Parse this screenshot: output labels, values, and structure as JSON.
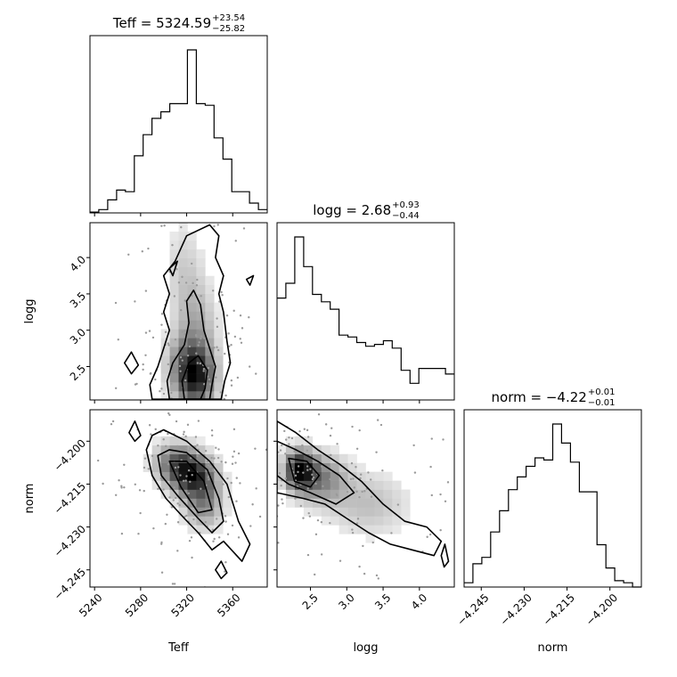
{
  "chart_data": {
    "type": "corner",
    "parameters": [
      "Teff",
      "logg",
      "norm"
    ],
    "titles": [
      {
        "param": "Teff",
        "label": "Teff",
        "median": "5324.59",
        "plus": "+23.54",
        "minus": "−25.82"
      },
      {
        "param": "logg",
        "label": "logg",
        "median": "2.68",
        "plus": "+0.93",
        "minus": "−0.44"
      },
      {
        "param": "norm",
        "label": "norm",
        "median": "−4.22",
        "plus": "+0.01",
        "minus": "−0.01"
      }
    ],
    "axis_labels": {
      "Teff": "Teff",
      "logg": "logg",
      "norm": "norm"
    },
    "ranges": {
      "Teff": [
        5236,
        5390
      ],
      "logg": [
        2.04,
        4.48
      ],
      "norm": [
        -4.251,
        -4.189
      ]
    },
    "ticks": {
      "Teff": {
        "values": [
          5240,
          5280,
          5320,
          5360
        ],
        "labels": [
          "5240",
          "5280",
          "5320",
          "5360"
        ]
      },
      "logg": {
        "values": [
          2.5,
          3.0,
          3.5,
          4.0
        ],
        "labels": [
          "2.5",
          "3.0",
          "3.5",
          "4.0"
        ]
      },
      "norm": {
        "values": [
          -4.245,
          -4.23,
          -4.215,
          -4.2
        ],
        "labels": [
          "−4.245",
          "−4.230",
          "−4.215",
          "−4.200"
        ]
      }
    },
    "histograms": {
      "Teff": {
        "edges_start": 5236,
        "bin_width": 7.7,
        "counts": [
          0.5,
          2,
          8,
          14,
          13,
          35,
          48,
          58,
          62,
          67,
          67,
          100,
          67,
          66,
          46,
          33,
          13,
          13,
          6,
          2
        ]
      },
      "logg": {
        "edges_start": 2.04,
        "bin_width": 0.122,
        "counts": [
          55,
          63,
          88,
          72,
          57,
          53,
          49,
          35,
          34,
          31,
          29,
          30,
          32,
          28,
          16,
          9,
          17,
          17,
          17,
          14
        ]
      },
      "norm": {
        "edges_start": -4.251,
        "bin_width": 0.0031,
        "counts": [
          2,
          11,
          14,
          26,
          36,
          46,
          52,
          57,
          61,
          60,
          77,
          68,
          59,
          45,
          45,
          20,
          9,
          3,
          2,
          0
        ]
      }
    },
    "pairs": [
      {
        "x": "Teff",
        "y": "logg",
        "density_peaks": [
          {
            "x": 5328,
            "y": 2.3,
            "w": 1.0,
            "sx": 12,
            "sy": 0.28
          },
          {
            "x": 5322,
            "y": 2.55,
            "w": 0.7,
            "sx": 14,
            "sy": 0.3
          },
          {
            "x": 5330,
            "y": 3.1,
            "w": 0.4,
            "sx": 12,
            "sy": 0.4
          },
          {
            "x": 5318,
            "y": 3.8,
            "w": 0.3,
            "sx": 12,
            "sy": 0.5
          }
        ],
        "contours": [
          [
            [
              5290,
              2.05
            ],
            [
              5288,
              2.25
            ],
            [
              5295,
              2.5
            ],
            [
              5300,
              2.75
            ],
            [
              5305,
              3.0
            ],
            [
              5300,
              3.25
            ],
            [
              5305,
              3.5
            ],
            [
              5300,
              3.75
            ],
            [
              5310,
              3.95
            ],
            [
              5320,
              4.3
            ],
            [
              5340,
              4.45
            ],
            [
              5348,
              4.3
            ],
            [
              5345,
              4.0
            ],
            [
              5352,
              3.75
            ],
            [
              5348,
              3.5
            ],
            [
              5352,
              3.25
            ],
            [
              5355,
              2.85
            ],
            [
              5358,
              2.55
            ],
            [
              5353,
              2.3
            ],
            [
              5350,
              2.05
            ]
          ],
          [
            [
              5305,
              2.05
            ],
            [
              5303,
              2.3
            ],
            [
              5308,
              2.55
            ],
            [
              5318,
              2.8
            ],
            [
              5322,
              3.1
            ],
            [
              5320,
              3.4
            ],
            [
              5326,
              3.55
            ],
            [
              5332,
              3.35
            ],
            [
              5335,
              3.0
            ],
            [
              5340,
              2.75
            ],
            [
              5345,
              2.5
            ],
            [
              5342,
              2.25
            ],
            [
              5340,
              2.05
            ]
          ],
          [
            [
              5318,
              2.05
            ],
            [
              5316,
              2.3
            ],
            [
              5322,
              2.55
            ],
            [
              5330,
              2.65
            ],
            [
              5338,
              2.45
            ],
            [
              5336,
              2.2
            ],
            [
              5332,
              2.05
            ]
          ],
          [
            [
              5266,
              2.55
            ],
            [
              5272,
              2.7
            ],
            [
              5278,
              2.52
            ],
            [
              5272,
              2.4
            ]
          ],
          [
            [
              5305,
              3.85
            ],
            [
              5312,
              3.95
            ],
            [
              5308,
              3.75
            ]
          ],
          [
            [
              5372,
              3.7
            ],
            [
              5378,
              3.75
            ],
            [
              5375,
              3.62
            ]
          ]
        ],
        "points": 170
      },
      {
        "x": "Teff",
        "y": "norm",
        "density_peaks": [
          {
            "x": 5325,
            "y": -4.212,
            "w": 1.0,
            "sx": 14,
            "sy": 0.005
          },
          {
            "x": 5310,
            "y": -4.207,
            "w": 0.6,
            "sx": 14,
            "sy": 0.005
          },
          {
            "x": 5335,
            "y": -4.222,
            "w": 0.6,
            "sx": 12,
            "sy": 0.006
          }
        ],
        "contours": [
          [
            [
              5285,
              -4.203
            ],
            [
              5290,
              -4.198
            ],
            [
              5300,
              -4.196
            ],
            [
              5320,
              -4.2
            ],
            [
              5340,
              -4.207
            ],
            [
              5355,
              -4.215
            ],
            [
              5365,
              -4.228
            ],
            [
              5375,
              -4.236
            ],
            [
              5368,
              -4.242
            ],
            [
              5352,
              -4.235
            ],
            [
              5342,
              -4.238
            ],
            [
              5330,
              -4.232
            ],
            [
              5318,
              -4.227
            ],
            [
              5302,
              -4.22
            ],
            [
              5290,
              -4.212
            ]
          ],
          [
            [
              5295,
              -4.205
            ],
            [
              5305,
              -4.203
            ],
            [
              5320,
              -4.204
            ],
            [
              5338,
              -4.21
            ],
            [
              5348,
              -4.22
            ],
            [
              5352,
              -4.228
            ],
            [
              5342,
              -4.232
            ],
            [
              5330,
              -4.227
            ],
            [
              5312,
              -4.219
            ],
            [
              5298,
              -4.212
            ]
          ],
          [
            [
              5305,
              -4.207
            ],
            [
              5320,
              -4.207
            ],
            [
              5335,
              -4.214
            ],
            [
              5342,
              -4.224
            ],
            [
              5330,
              -4.225
            ],
            [
              5315,
              -4.216
            ]
          ],
          [
            [
              5270,
              -4.197
            ],
            [
              5275,
              -4.193
            ],
            [
              5280,
              -4.198
            ],
            [
              5275,
              -4.2
            ]
          ],
          [
            [
              5345,
              -4.245
            ],
            [
              5350,
              -4.242
            ],
            [
              5355,
              -4.246
            ],
            [
              5350,
              -4.248
            ]
          ]
        ],
        "points": 170
      },
      {
        "x": "logg",
        "y": "norm",
        "density_peaks": [
          {
            "x": 2.35,
            "y": -4.21,
            "w": 1.0,
            "sx": 0.15,
            "sy": 0.005
          },
          {
            "x": 2.65,
            "y": -4.213,
            "w": 0.55,
            "sx": 0.25,
            "sy": 0.006
          },
          {
            "x": 3.3,
            "y": -4.222,
            "w": 0.3,
            "sx": 0.4,
            "sy": 0.008
          }
        ],
        "contours": [
          [
            [
              2.04,
              -4.193
            ],
            [
              2.3,
              -4.197
            ],
            [
              2.6,
              -4.203
            ],
            [
              2.9,
              -4.208
            ],
            [
              3.2,
              -4.214
            ],
            [
              3.5,
              -4.222
            ],
            [
              3.8,
              -4.228
            ],
            [
              4.1,
              -4.23
            ],
            [
              4.3,
              -4.235
            ],
            [
              4.2,
              -4.24
            ],
            [
              3.9,
              -4.238
            ],
            [
              3.6,
              -4.236
            ],
            [
              3.3,
              -4.232
            ],
            [
              3.0,
              -4.227
            ],
            [
              2.7,
              -4.222
            ],
            [
              2.4,
              -4.22
            ],
            [
              2.04,
              -4.218
            ]
          ],
          [
            [
              2.04,
              -4.2
            ],
            [
              2.3,
              -4.203
            ],
            [
              2.6,
              -4.207
            ],
            [
              2.9,
              -4.212
            ],
            [
              3.1,
              -4.218
            ],
            [
              2.85,
              -4.222
            ],
            [
              2.5,
              -4.218
            ],
            [
              2.2,
              -4.215
            ],
            [
              2.04,
              -4.212
            ]
          ],
          [
            [
              2.2,
              -4.206
            ],
            [
              2.45,
              -4.207
            ],
            [
              2.62,
              -4.212
            ],
            [
              2.5,
              -4.216
            ],
            [
              2.28,
              -4.214
            ]
          ],
          [
            [
              4.3,
              -4.24
            ],
            [
              4.35,
              -4.236
            ],
            [
              4.4,
              -4.242
            ],
            [
              4.34,
              -4.244
            ]
          ]
        ],
        "points": 160
      }
    ]
  }
}
